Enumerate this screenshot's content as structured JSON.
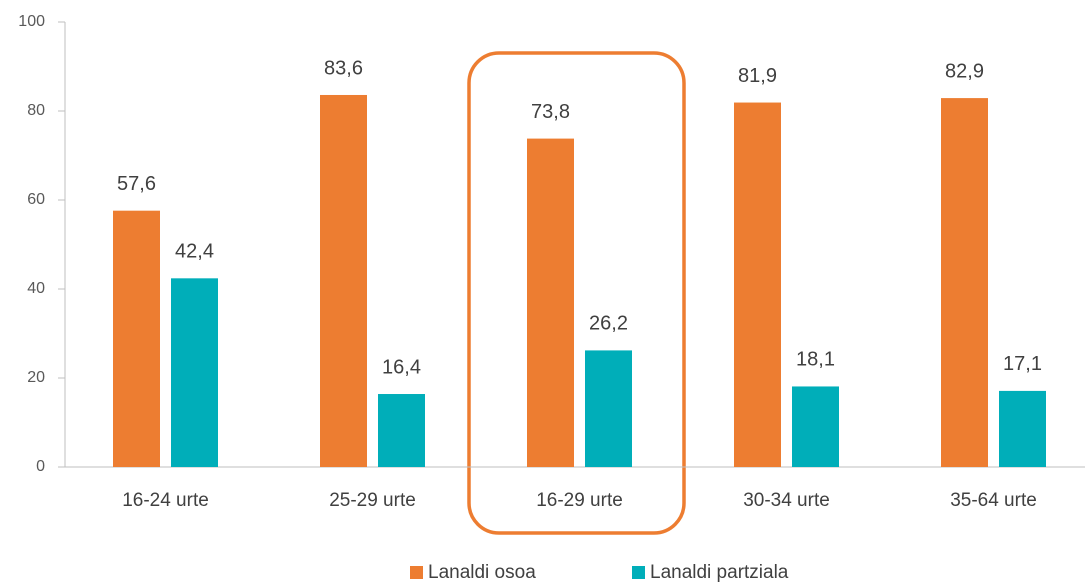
{
  "chart_data": {
    "type": "bar",
    "categories": [
      "16-24 urte",
      "25-29 urte",
      "16-29 urte",
      "30-34 urte",
      "35-64 urte"
    ],
    "series": [
      {
        "name": "Lanaldi osoa",
        "color": "#ED7D31",
        "values": [
          57.6,
          83.6,
          73.8,
          81.9,
          82.9
        ],
        "value_labels": [
          "57,6",
          "83,6",
          "73,8",
          "81,9",
          "82,9"
        ]
      },
      {
        "name": "Lanaldi partziala",
        "color": "#00AEB9",
        "values": [
          42.4,
          16.4,
          26.2,
          18.1,
          17.1
        ],
        "value_labels": [
          "42,4",
          "16,4",
          "26,2",
          "18,1",
          "17,1"
        ]
      }
    ],
    "ylim": [
      0,
      100
    ],
    "yticks": [
      0,
      20,
      40,
      60,
      80,
      100
    ],
    "grid": false,
    "legend": "bottom"
  }
}
